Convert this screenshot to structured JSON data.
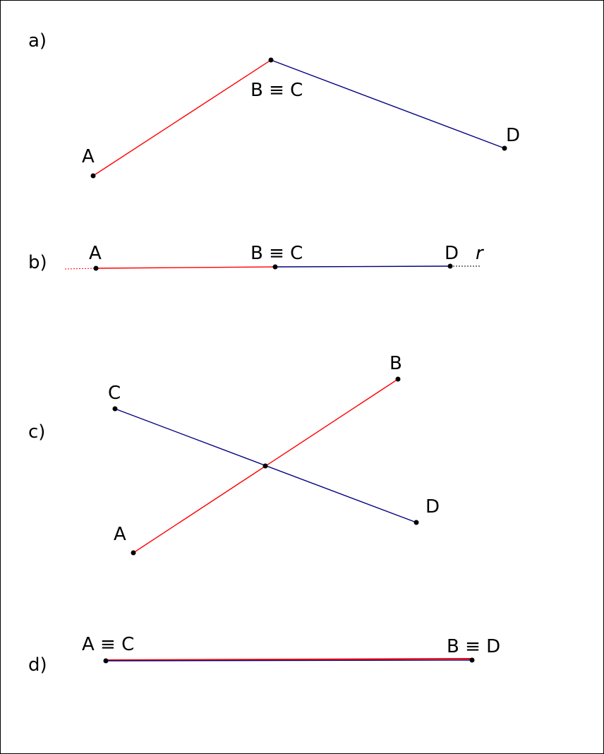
{
  "panels": {
    "a": {
      "label": "a)",
      "point_A": "A",
      "point_BC": "B ≡ C",
      "point_D": "D"
    },
    "b": {
      "label": "b)",
      "point_A": "A",
      "point_BC": "B ≡ C",
      "point_D": "D",
      "line_r": "r"
    },
    "c": {
      "label": "c)",
      "point_A": "A",
      "point_B": "B",
      "point_C": "C",
      "point_D": "D"
    },
    "d": {
      "label": "d)",
      "point_AC": "A ≡ C",
      "point_BD": "B ≡ D"
    }
  },
  "colors": {
    "segment_AB": "#ff0000",
    "segment_CD": "#000080",
    "points": "#000000"
  }
}
